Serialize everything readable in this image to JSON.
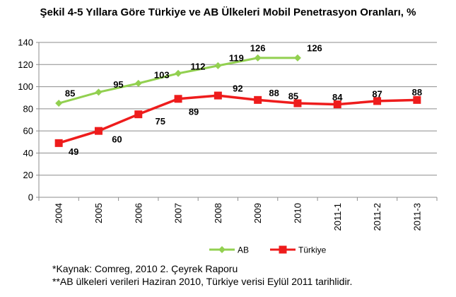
{
  "chart_data": {
    "type": "line",
    "title": "Şekil 4-5 Yıllara Göre Türkiye ve AB Ülkeleri Mobil Penetrasyon Oranları, %",
    "categories": [
      "2004",
      "2005",
      "2006",
      "2007",
      "2008",
      "2009",
      "2010",
      "2011-1",
      "2011-2",
      "2011-3"
    ],
    "ylim": [
      0,
      140
    ],
    "yticks": [
      0,
      20,
      40,
      60,
      80,
      100,
      120,
      140
    ],
    "grid": "horizontal",
    "legend_position": "bottom",
    "series": [
      {
        "name": "AB",
        "color": "#92D050",
        "marker": "diamond",
        "values": [
          85,
          95,
          103,
          112,
          119,
          126,
          126,
          null,
          null,
          null
        ]
      },
      {
        "name": "Türkiye",
        "color": "#EE1C1C",
        "marker": "square",
        "values": [
          49,
          60,
          75,
          89,
          92,
          88,
          85,
          84,
          87,
          88
        ]
      }
    ]
  },
  "notes": {
    "source": "*Kaynak: Comreg, 2010 2. Çeyrek Raporu",
    "footnote": "**AB ülkeleri verileri Haziran 2010, Türkiye verisi Eylül 2011 tarihlidir."
  }
}
